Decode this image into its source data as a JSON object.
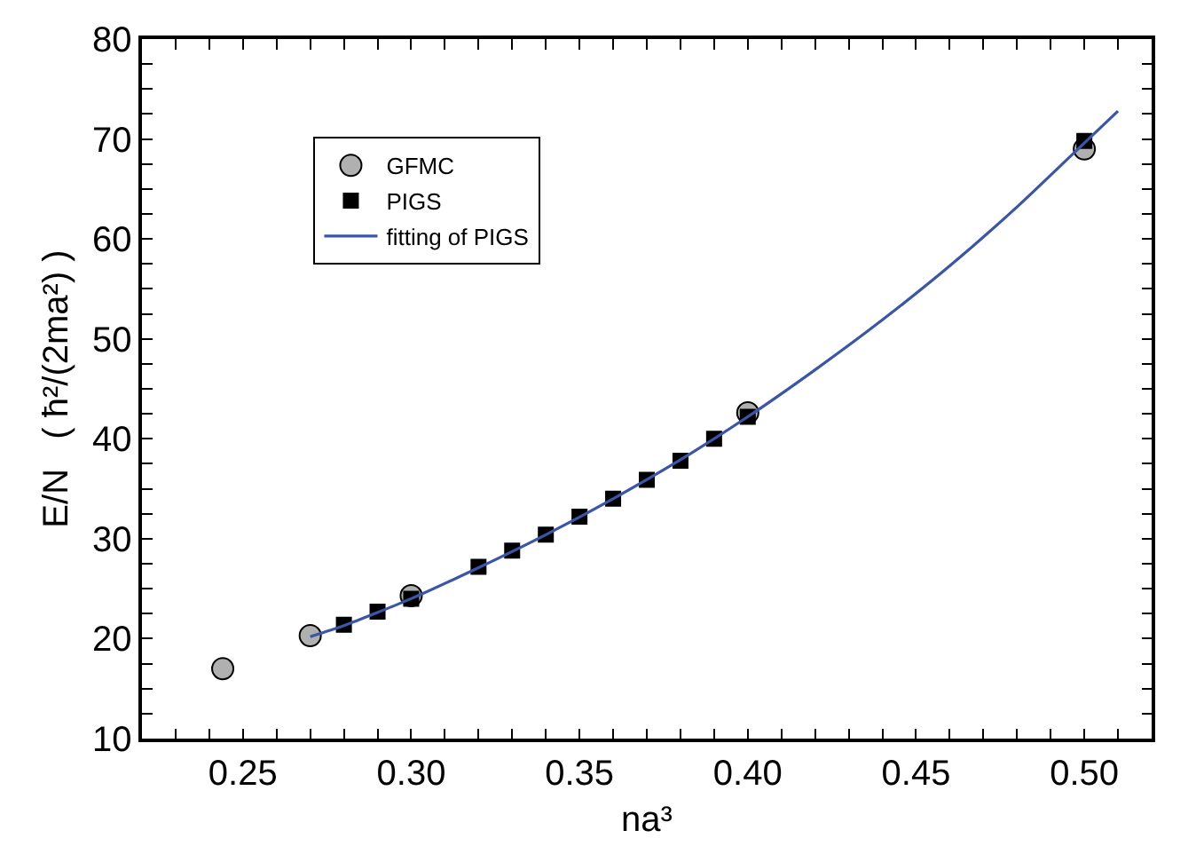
{
  "chart_data": {
    "type": "scatter",
    "xlabel": "na³",
    "ylabel": "E/N   ( ħ²/(2ma²) )",
    "xlim": [
      0.22,
      0.52
    ],
    "xticks": [
      {
        "value": 0.22,
        "label": null
      },
      {
        "value": 0.23,
        "label": null
      },
      {
        "value": 0.24,
        "label": null
      },
      {
        "value": 0.25,
        "label": "0.25"
      },
      {
        "value": 0.26,
        "label": null
      },
      {
        "value": 0.27,
        "label": null
      },
      {
        "value": 0.28,
        "label": null
      },
      {
        "value": 0.29,
        "label": null
      },
      {
        "value": 0.3,
        "label": "0.30"
      },
      {
        "value": 0.31,
        "label": null
      },
      {
        "value": 0.32,
        "label": null
      },
      {
        "value": 0.33,
        "label": null
      },
      {
        "value": 0.34,
        "label": null
      },
      {
        "value": 0.35,
        "label": "0.35"
      },
      {
        "value": 0.36,
        "label": null
      },
      {
        "value": 0.37,
        "label": null
      },
      {
        "value": 0.38,
        "label": null
      },
      {
        "value": 0.39,
        "label": null
      },
      {
        "value": 0.4,
        "label": "0.40"
      },
      {
        "value": 0.41,
        "label": null
      },
      {
        "value": 0.42,
        "label": null
      },
      {
        "value": 0.43,
        "label": null
      },
      {
        "value": 0.44,
        "label": null
      },
      {
        "value": 0.45,
        "label": "0.45"
      },
      {
        "value": 0.46,
        "label": null
      },
      {
        "value": 0.47,
        "label": null
      },
      {
        "value": 0.48,
        "label": null
      },
      {
        "value": 0.49,
        "label": null
      },
      {
        "value": 0.5,
        "label": "0.50"
      },
      {
        "value": 0.51,
        "label": null
      }
    ],
    "ylim": [
      10,
      80
    ],
    "yticks": [
      10,
      {
        "value": 12.5,
        "label": null
      },
      {
        "value": 15,
        "label": null
      },
      {
        "value": 17.5,
        "label": null
      },
      20,
      {
        "value": 22.5,
        "label": null
      },
      {
        "value": 25,
        "label": null
      },
      {
        "value": 27.5,
        "label": null
      },
      30,
      {
        "value": 32.5,
        "label": null
      },
      {
        "value": 35,
        "label": null
      },
      {
        "value": 37.5,
        "label": null
      },
      40,
      {
        "value": 42.5,
        "label": null
      },
      {
        "value": 45,
        "label": null
      },
      {
        "value": 47.5,
        "label": null
      },
      50,
      {
        "value": 52.5,
        "label": null
      },
      {
        "value": 55,
        "label": null
      },
      {
        "value": 57.5,
        "label": null
      },
      60,
      {
        "value": 62.5,
        "label": null
      },
      {
        "value": 65,
        "label": null
      },
      {
        "value": 67.5,
        "label": null
      },
      70,
      {
        "value": 72.5,
        "label": null
      },
      {
        "value": 75,
        "label": null
      },
      {
        "value": 77.5,
        "label": null
      },
      80
    ],
    "legend": "top left",
    "series": [
      {
        "name": "GFMC",
        "marker": "circle",
        "color": "#b0b0b0",
        "x": [
          0.244,
          0.27,
          0.3,
          0.4,
          0.5
        ],
        "values": [
          17.0,
          20.3,
          24.3,
          42.6,
          69.0
        ]
      },
      {
        "name": "PIGS",
        "marker": "square",
        "color": "#000000",
        "x": [
          0.28,
          0.29,
          0.3,
          0.32,
          0.33,
          0.34,
          0.35,
          0.36,
          0.37,
          0.38,
          0.39,
          0.4,
          0.5
        ],
        "values": [
          21.4,
          22.7,
          24.0,
          27.2,
          28.8,
          30.4,
          32.2,
          34.0,
          35.9,
          37.8,
          40.0,
          42.2,
          69.8
        ]
      },
      {
        "name": "fitting of PIGS",
        "type": "line",
        "marker": "none",
        "line_style": "solid",
        "color": "#3a56a8",
        "x": [
          0.27,
          0.28,
          0.3,
          0.32,
          0.34,
          0.36,
          0.38,
          0.4,
          0.42,
          0.44,
          0.46,
          0.48,
          0.5,
          0.51
        ],
        "values": [
          20.2,
          21.3,
          24.0,
          27.1,
          30.4,
          34.0,
          37.9,
          42.2,
          46.9,
          51.9,
          57.3,
          63.2,
          69.6,
          72.8
        ]
      }
    ]
  }
}
